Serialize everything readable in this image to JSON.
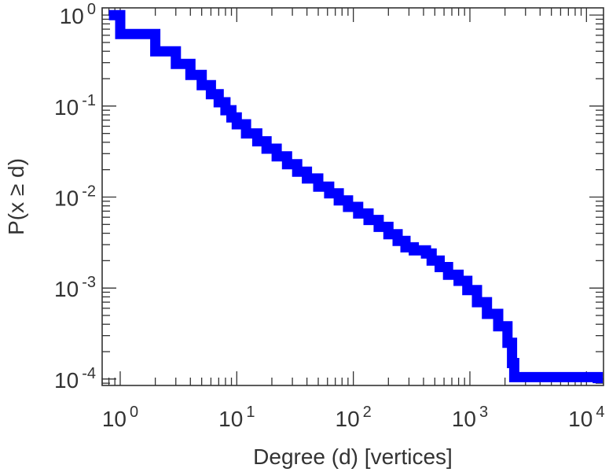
{
  "chart_data": {
    "type": "line",
    "title": "",
    "xlabel": "Degree (d) [vertices]",
    "ylabel": "P(x ≥ d)",
    "x_scale": "log",
    "y_scale": "log",
    "xlim": [
      0.7,
      14000
    ],
    "ylim": [
      8.5e-05,
      1.2
    ],
    "grid": false,
    "legend": "none",
    "series_color": "#0000ff",
    "x_ticks": [
      {
        "base": "10",
        "exp": "0",
        "value": 1
      },
      {
        "base": "10",
        "exp": "1",
        "value": 10
      },
      {
        "base": "10",
        "exp": "2",
        "value": 100
      },
      {
        "base": "10",
        "exp": "3",
        "value": 1000
      },
      {
        "base": "10",
        "exp": "4",
        "value": 10000
      }
    ],
    "y_ticks": [
      {
        "base": "10",
        "exp": "0",
        "value": 1
      },
      {
        "base": "10",
        "exp": "-1",
        "value": 0.1
      },
      {
        "base": "10",
        "exp": "-2",
        "value": 0.01
      },
      {
        "base": "10",
        "exp": "-3",
        "value": 0.001
      },
      {
        "base": "10",
        "exp": "-4",
        "value": 0.0001
      }
    ],
    "series": [
      {
        "step": true,
        "points": [
          [
            0.8,
            1.0
          ],
          [
            1,
            1.0
          ],
          [
            1,
            0.62
          ],
          [
            2,
            0.62
          ],
          [
            2,
            0.4
          ],
          [
            3,
            0.4
          ],
          [
            3,
            0.29
          ],
          [
            4,
            0.29
          ],
          [
            4,
            0.22
          ],
          [
            5,
            0.22
          ],
          [
            5,
            0.17
          ],
          [
            6,
            0.17
          ],
          [
            6,
            0.135
          ],
          [
            7,
            0.135
          ],
          [
            7,
            0.11
          ],
          [
            8,
            0.11
          ],
          [
            8,
            0.09
          ],
          [
            9,
            0.09
          ],
          [
            9,
            0.075
          ],
          [
            10,
            0.075
          ],
          [
            10,
            0.063
          ],
          [
            12,
            0.063
          ],
          [
            12,
            0.05
          ],
          [
            15,
            0.05
          ],
          [
            15,
            0.041
          ],
          [
            18,
            0.041
          ],
          [
            18,
            0.034
          ],
          [
            22,
            0.034
          ],
          [
            22,
            0.028
          ],
          [
            27,
            0.028
          ],
          [
            27,
            0.023
          ],
          [
            33,
            0.023
          ],
          [
            33,
            0.019
          ],
          [
            40,
            0.019
          ],
          [
            40,
            0.016
          ],
          [
            50,
            0.016
          ],
          [
            50,
            0.013
          ],
          [
            62,
            0.013
          ],
          [
            62,
            0.011
          ],
          [
            75,
            0.011
          ],
          [
            75,
            0.0092
          ],
          [
            90,
            0.0092
          ],
          [
            90,
            0.0078
          ],
          [
            110,
            0.0078
          ],
          [
            110,
            0.0066
          ],
          [
            135,
            0.0066
          ],
          [
            135,
            0.0056
          ],
          [
            165,
            0.0056
          ],
          [
            165,
            0.0047
          ],
          [
            200,
            0.0047
          ],
          [
            200,
            0.0039
          ],
          [
            240,
            0.0039
          ],
          [
            240,
            0.0033
          ],
          [
            280,
            0.0033
          ],
          [
            280,
            0.0028
          ],
          [
            330,
            0.0028
          ],
          [
            330,
            0.0026
          ],
          [
            420,
            0.0026
          ],
          [
            420,
            0.0024
          ],
          [
            470,
            0.0024
          ],
          [
            470,
            0.002
          ],
          [
            550,
            0.002
          ],
          [
            550,
            0.0017
          ],
          [
            650,
            0.0017
          ],
          [
            650,
            0.0014
          ],
          [
            800,
            0.0014
          ],
          [
            800,
            0.0012
          ],
          [
            950,
            0.0012
          ],
          [
            950,
            0.00095
          ],
          [
            1150,
            0.00095
          ],
          [
            1150,
            0.0007
          ],
          [
            1400,
            0.0007
          ],
          [
            1400,
            0.00052
          ],
          [
            1750,
            0.00052
          ],
          [
            1750,
            0.00038
          ],
          [
            2100,
            0.00038
          ],
          [
            2100,
            0.00025
          ],
          [
            2300,
            0.00025
          ],
          [
            2300,
            0.00015
          ],
          [
            2400,
            0.00015
          ],
          [
            2400,
            0.000105
          ],
          [
            12500,
            0.000105
          ],
          [
            12500,
            9e-05
          ]
        ]
      }
    ]
  }
}
